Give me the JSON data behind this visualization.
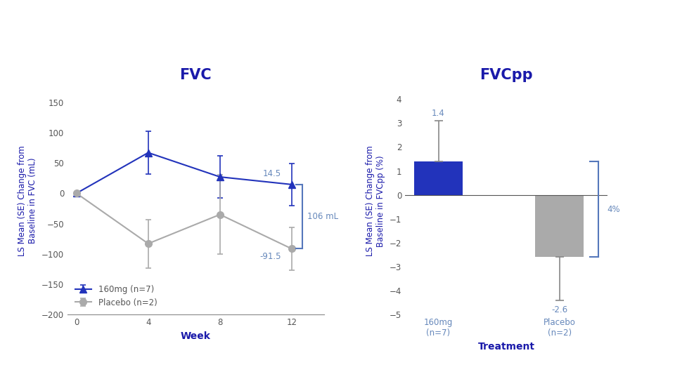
{
  "fvc_title": "FVC",
  "fvc_xlabel": "Week",
  "fvc_ylabel": "LS Mean (SE) Change from\nBaseline in FVC (mL)",
  "fvc_weeks": [
    0,
    4,
    8,
    12
  ],
  "fvc_160mg": [
    0,
    67,
    27,
    14.5
  ],
  "fvc_160mg_err": [
    0,
    35,
    35,
    35
  ],
  "fvc_placebo": [
    0,
    -83,
    -35,
    -91.5
  ],
  "fvc_placebo_err": [
    0,
    40,
    65,
    35
  ],
  "fvc_ylim": [
    -200,
    175
  ],
  "fvc_yticks": [
    -200,
    -150,
    -100,
    -50,
    0,
    50,
    100,
    150
  ],
  "fvc_annot_160mg": "14.5",
  "fvc_annot_placebo": "-91.5",
  "fvc_brace_label": "106 mL",
  "fvcpp_title": "FVCpp",
  "fvcpp_xlabel": "Treatment",
  "fvcpp_ylabel": "LS Mean (SE) Change from\nBaseline in FVCpp (%)",
  "fvcpp_categories": [
    "160mg\n(n=7)",
    "Placebo\n(n=2)"
  ],
  "fvcpp_values": [
    1.4,
    -2.6
  ],
  "fvcpp_errors_up": [
    1.7,
    0.0
  ],
  "fvcpp_errors_dn": [
    0.0,
    1.8
  ],
  "fvcpp_colors": [
    "#2233BB",
    "#AAAAAA"
  ],
  "fvcpp_ylim": [
    -5,
    4.5
  ],
  "fvcpp_yticks": [
    -5,
    -4,
    -3,
    -2,
    -1,
    0,
    1,
    2,
    3,
    4
  ],
  "fvcpp_brace_label": "4%",
  "line_color_160mg": "#2233BB",
  "line_color_placebo": "#AAAAAA",
  "title_color": "#1a1aaa",
  "axis_label_color": "#1a1aaa",
  "tick_label_color": "#555555",
  "annotation_color": "#6688bb",
  "brace_color": "#5577bb",
  "background_color": "#FFFFFF",
  "legend_160mg": "160mg (n=7)",
  "legend_placebo": "Placebo (n=2)"
}
